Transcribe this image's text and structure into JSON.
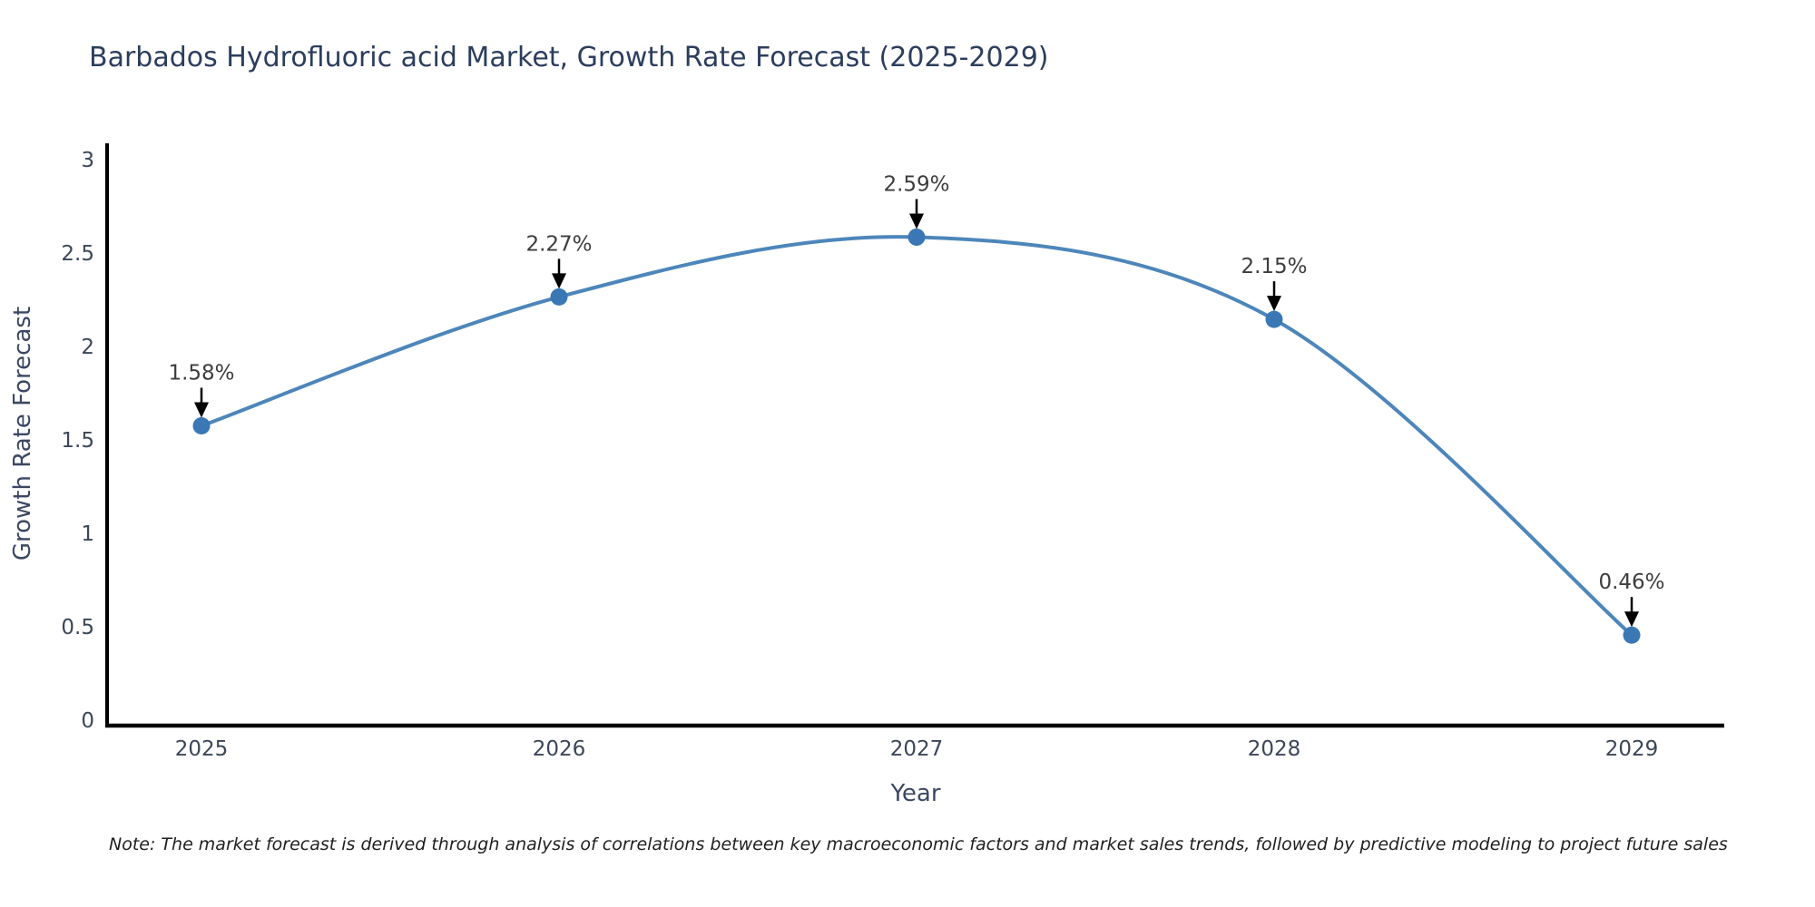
{
  "header": {
    "title": "Barbados Hydrofluoric acid Market, Growth Rate Forecast (2025-2029)"
  },
  "chart_data": {
    "type": "line",
    "line_shape": "spline",
    "title": "Barbados Hydrofluoric acid Market, Growth Rate Forecast (2025-2029)",
    "categories": [
      "2025",
      "2026",
      "2027",
      "2028",
      "2029"
    ],
    "values": [
      1.58,
      2.27,
      2.59,
      2.15,
      0.46
    ],
    "data_labels": [
      "1.58%",
      "2.27%",
      "2.59%",
      "2.15%",
      "0.46%"
    ],
    "xlabel": "Year",
    "ylabel": "Growth Rate Forecast",
    "ylim": [
      0,
      3
    ],
    "yticks": [
      0,
      0.5,
      1,
      1.5,
      2,
      2.5,
      3
    ],
    "grid": false,
    "legend": "none",
    "annotations": "arrow-down-to-each-point",
    "colors": {
      "title": "#2c3e5d",
      "axis_title": "#3b4863",
      "tick_label": "#3c4758",
      "line": "#4d86ba",
      "marker": "#3a78b5",
      "arrow": "#000000",
      "annotation_text": "#3d3d3d",
      "axis": "#000000",
      "note": "#1f1f1f"
    }
  },
  "footer": {
    "note": "Note: The market forecast is derived through analysis of correlations between key macroeconomic factors and market sales trends, followed by predictive modeling to project future sales"
  }
}
